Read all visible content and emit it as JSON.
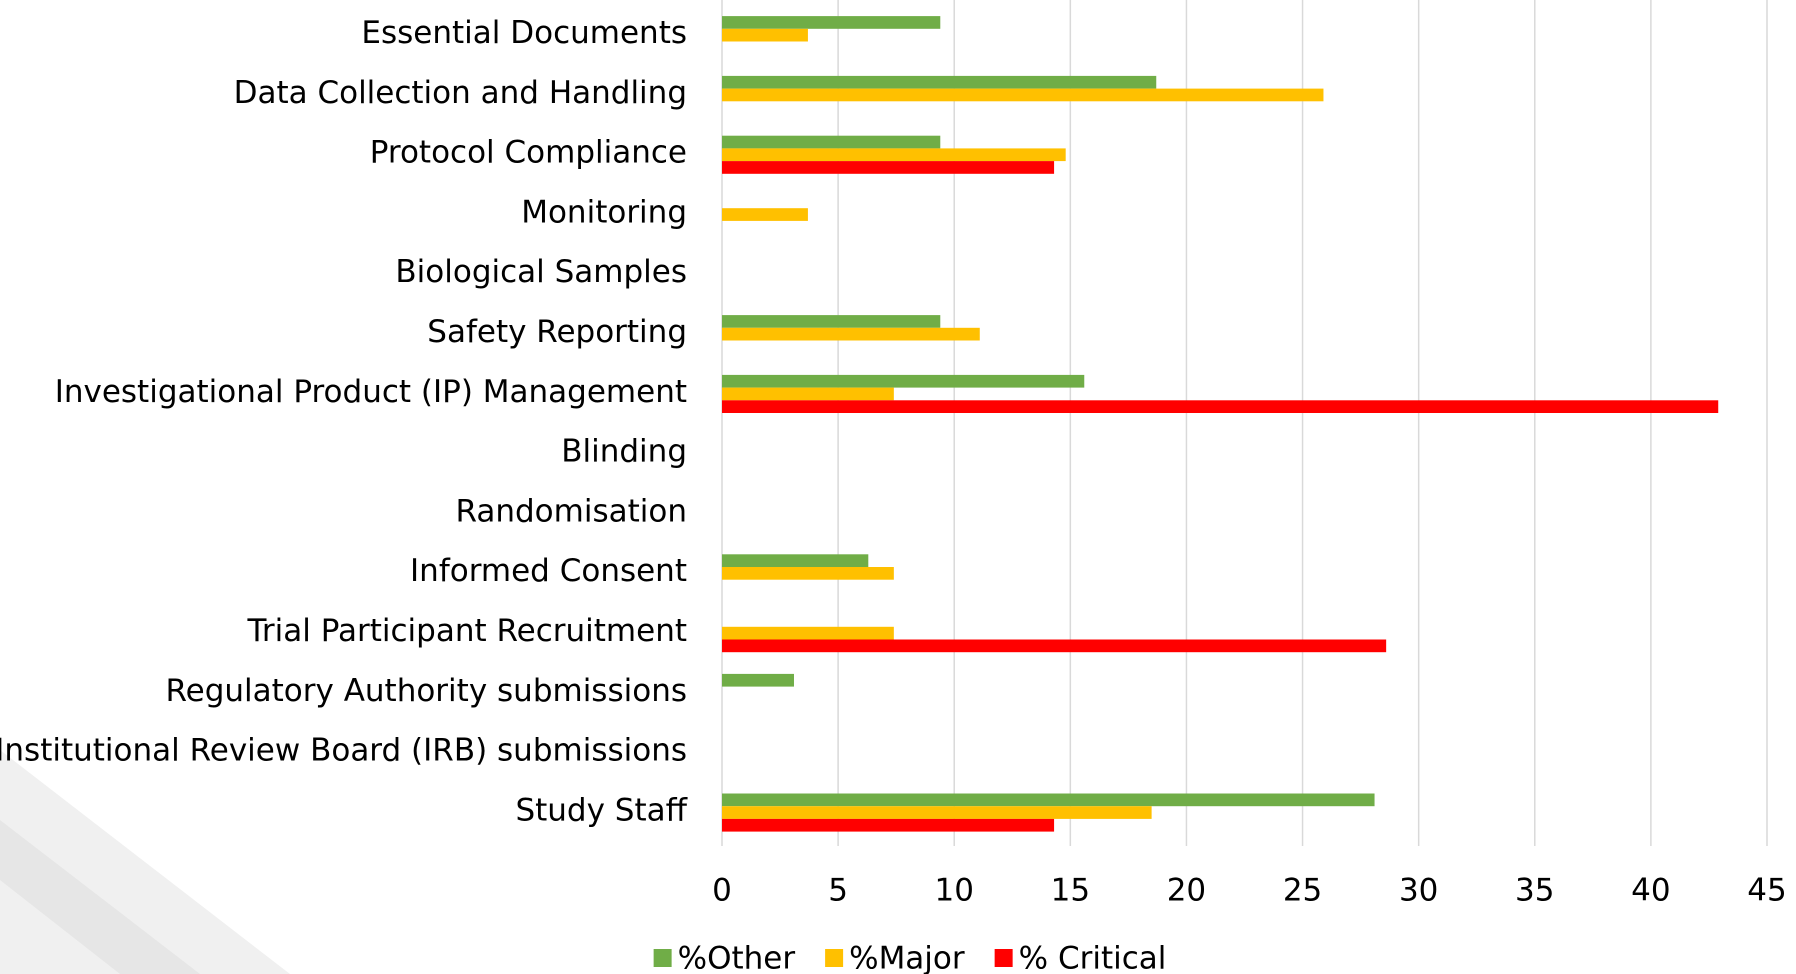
{
  "chart_data": {
    "type": "hbar",
    "categories": [
      "Essential Documents",
      "Data Collection and Handling",
      "Protocol Compliance",
      "Monitoring",
      "Biological Samples",
      "Safety Reporting",
      "Investigational Product (IP) Management",
      "Blinding",
      "Randomisation",
      "Informed Consent",
      "Trial Participant Recruitment",
      "Regulatory Authority submissions",
      "Institutional Review Board (IRB) submissions",
      "Study Staff"
    ],
    "series": [
      {
        "name": "%Other",
        "color": "#70ad47",
        "values": [
          9.4,
          18.7,
          9.4,
          0,
          0,
          9.4,
          15.6,
          0,
          0,
          6.3,
          0,
          3.1,
          0,
          28.1
        ]
      },
      {
        "name": "%Major",
        "color": "#ffc000",
        "values": [
          3.7,
          25.9,
          14.8,
          3.7,
          0,
          11.1,
          7.4,
          0,
          0,
          7.4,
          7.4,
          0,
          0,
          18.5
        ]
      },
      {
        "name": "% Critical",
        "color": "#ff0000",
        "values": [
          0,
          0,
          14.3,
          0,
          0,
          0,
          42.9,
          0,
          0,
          0,
          28.6,
          0,
          0,
          14.3
        ]
      }
    ],
    "xlim": [
      0,
      45
    ],
    "xticks": [
      0,
      5,
      10,
      15,
      20,
      25,
      30,
      35,
      40,
      45
    ],
    "grid": true,
    "legend": "bottom"
  }
}
